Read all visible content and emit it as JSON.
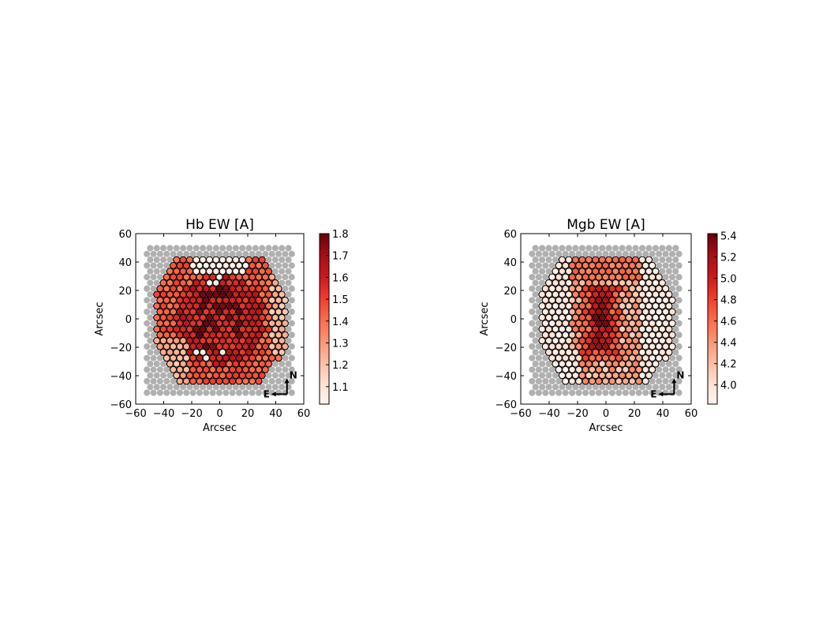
{
  "chart_data": [
    {
      "type": "heatmap",
      "title": "Hb EW [A]",
      "xlabel": "Arcsec",
      "ylabel": "Arcsec",
      "xlim": [
        -60,
        60
      ],
      "ylim": [
        -60,
        60
      ],
      "xticks": [
        -60,
        -40,
        -20,
        0,
        20,
        40,
        60
      ],
      "yticks": [
        -60,
        -40,
        -20,
        0,
        20,
        40,
        60
      ],
      "xtick_labels": [
        "−60",
        "−40",
        "−20",
        "0",
        "20",
        "40",
        "60"
      ],
      "ytick_labels": [
        "−60",
        "−40",
        "−20",
        "0",
        "20",
        "40",
        "60"
      ],
      "colormap": "Reds",
      "colorbar": {
        "range": [
          1.02,
          1.8
        ],
        "ticks": [
          1.1,
          1.2,
          1.3,
          1.4,
          1.5,
          1.6,
          1.7,
          1.8
        ],
        "tick_labels": [
          "1.1",
          "1.2",
          "1.3",
          "1.4",
          "1.5",
          "1.6",
          "1.7",
          "1.8"
        ]
      },
      "fiber_grid": {
        "x_range": [
          -52,
          52
        ],
        "y_range": [
          -52,
          50
        ],
        "spacing": 4.7
      },
      "data_region_radius": 45,
      "background_fiber_color": "#b0b0b0",
      "compass": {
        "north": "N",
        "east": "E"
      },
      "regions": [
        {
          "location": "northern cap (y > 30, |x| < 20)",
          "value": 1.05
        },
        {
          "location": "south-west edge",
          "value": 1.22
        },
        {
          "location": "east edge",
          "value": 1.22
        },
        {
          "location": "outer ring",
          "value": 1.45
        },
        {
          "location": "central region",
          "value": 1.62
        }
      ]
    },
    {
      "type": "heatmap",
      "title": "Mgb EW [A]",
      "xlabel": "Arcsec",
      "ylabel": "Arcsec",
      "xlim": [
        -60,
        60
      ],
      "ylim": [
        -60,
        60
      ],
      "xticks": [
        -60,
        -40,
        -20,
        0,
        20,
        40,
        60
      ],
      "yticks": [
        -60,
        -40,
        -20,
        0,
        20,
        40,
        60
      ],
      "xtick_labels": [
        "−60",
        "−40",
        "−20",
        "0",
        "20",
        "40",
        "60"
      ],
      "ytick_labels": [
        "−60",
        "−40",
        "−20",
        "0",
        "20",
        "40",
        "60"
      ],
      "colormap": "Reds",
      "colorbar": {
        "range": [
          3.82,
          5.42
        ],
        "ticks": [
          4.0,
          4.2,
          4.4,
          4.6,
          4.8,
          5.0,
          5.2,
          5.4
        ],
        "tick_labels": [
          "4.0",
          "4.2",
          "4.4",
          "4.6",
          "4.8",
          "5.0",
          "5.2",
          "5.4"
        ]
      },
      "fiber_grid": {
        "x_range": [
          -52,
          52
        ],
        "y_range": [
          -52,
          50
        ],
        "spacing": 4.7
      },
      "data_region_radius": 45,
      "background_fiber_color": "#b0b0b0",
      "compass": {
        "north": "N",
        "east": "E"
      },
      "regions": [
        {
          "location": "west and east outskirts",
          "value": 3.9
        },
        {
          "location": "northern part",
          "value": 4.55
        },
        {
          "location": "southern middle",
          "value": 4.6
        },
        {
          "location": "central spine",
          "value": 5.05
        },
        {
          "location": "core",
          "value": 5.3
        }
      ]
    }
  ]
}
